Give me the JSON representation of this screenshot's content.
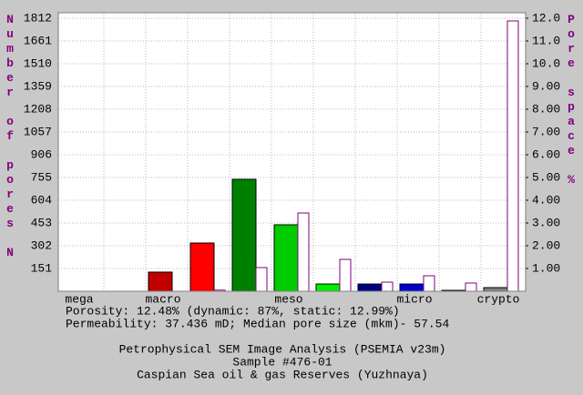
{
  "chart_data": {
    "type": "bar",
    "title_lines": [
      "Petrophysical SEM Image Analysis (PSEMIA v23m)",
      "Sample #476-01",
      "Caspian Sea oil & gas Reserves (Yuzhnaya)"
    ],
    "notes": [
      "Porosity: 12.48% (dynamic: 87%, static: 12.99%)",
      "Permeability: 37.436 mD;   Median pore size (mkm)- 57.54"
    ],
    "ylabel": "Number of pores N",
    "y2label": "Pore space %",
    "categories": [
      "mega",
      null,
      "macro",
      null,
      null,
      "meso",
      null,
      null,
      "micro",
      null,
      "crypto"
    ],
    "series": [
      {
        "name": "Number of pores",
        "colors": [
          "#808080",
          "#808080",
          "#c00000",
          "#ff0000",
          "#008000",
          "#00cc00",
          "#00ee00",
          "#000080",
          "#0000cc",
          "#0000ff",
          "#808080"
        ],
        "values": [
          0,
          0,
          127,
          320,
          743,
          441,
          48,
          48,
          48,
          6,
          24
        ]
      },
      {
        "name": "Pore space",
        "color": "#800080",
        "axis": "y2",
        "values": [
          0,
          0,
          0,
          0.05,
          1.04,
          3.44,
          1.4,
          0.4,
          0.68,
          0.36,
          11.88
        ]
      }
    ],
    "ylim": [
      0,
      1812
    ],
    "yticks": [
      151,
      302,
      453,
      604,
      755,
      906,
      1057,
      1208,
      1359,
      1510,
      1661,
      1812
    ],
    "y2lim": [
      0,
      12
    ],
    "y2ticks": [
      {
        "value": 1,
        "label": "1.00"
      },
      {
        "value": 2,
        "label": "2.00"
      },
      {
        "value": 3,
        "label": "3.00"
      },
      {
        "value": 4,
        "label": "4.00"
      },
      {
        "value": 5,
        "label": "5.00"
      },
      {
        "value": 6,
        "label": "6.00"
      },
      {
        "value": 7,
        "label": "7.00"
      },
      {
        "value": 8,
        "label": "8.00"
      },
      {
        "value": 9,
        "label": "9.00"
      },
      {
        "value": 10,
        "label": "10.0"
      },
      {
        "value": 11,
        "label": "11.0"
      },
      {
        "value": 12,
        "label": "12.0"
      }
    ],
    "grid": true
  }
}
